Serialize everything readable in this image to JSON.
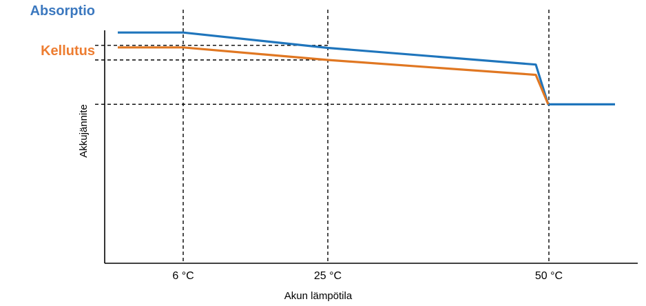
{
  "chart_data": {
    "type": "line",
    "title": "",
    "xlabel": "Akun lämpötila",
    "ylabel": "Akkujännite",
    "x_ticks": [
      {
        "value": 6,
        "label": "6 °C"
      },
      {
        "value": 25,
        "label": "25 °C"
      },
      {
        "value": 50,
        "label": "50 °C"
      }
    ],
    "series": [
      {
        "name": "Absorptio",
        "color": "#1f75bc",
        "label_color": "#3b78bf",
        "points": [
          [
            -3,
            0.9
          ],
          [
            6,
            0.9
          ],
          [
            25,
            0.84
          ],
          [
            48.5,
            0.775
          ],
          [
            49.6,
            0.62
          ],
          [
            58,
            0.62
          ]
        ]
      },
      {
        "name": "Kellutus",
        "color": "#e07722",
        "label_color": "#ed7d31",
        "points": [
          [
            -3,
            0.842
          ],
          [
            6,
            0.842
          ],
          [
            25,
            0.793
          ],
          [
            48.5,
            0.735
          ],
          [
            49.6,
            0.62
          ]
        ]
      }
    ],
    "reference_lines": {
      "vertical": [
        6,
        25,
        50
      ],
      "horizontal": [
        0.85,
        0.793,
        0.62
      ]
    },
    "grid": false,
    "legend": "left, as colored labels beside lines"
  }
}
